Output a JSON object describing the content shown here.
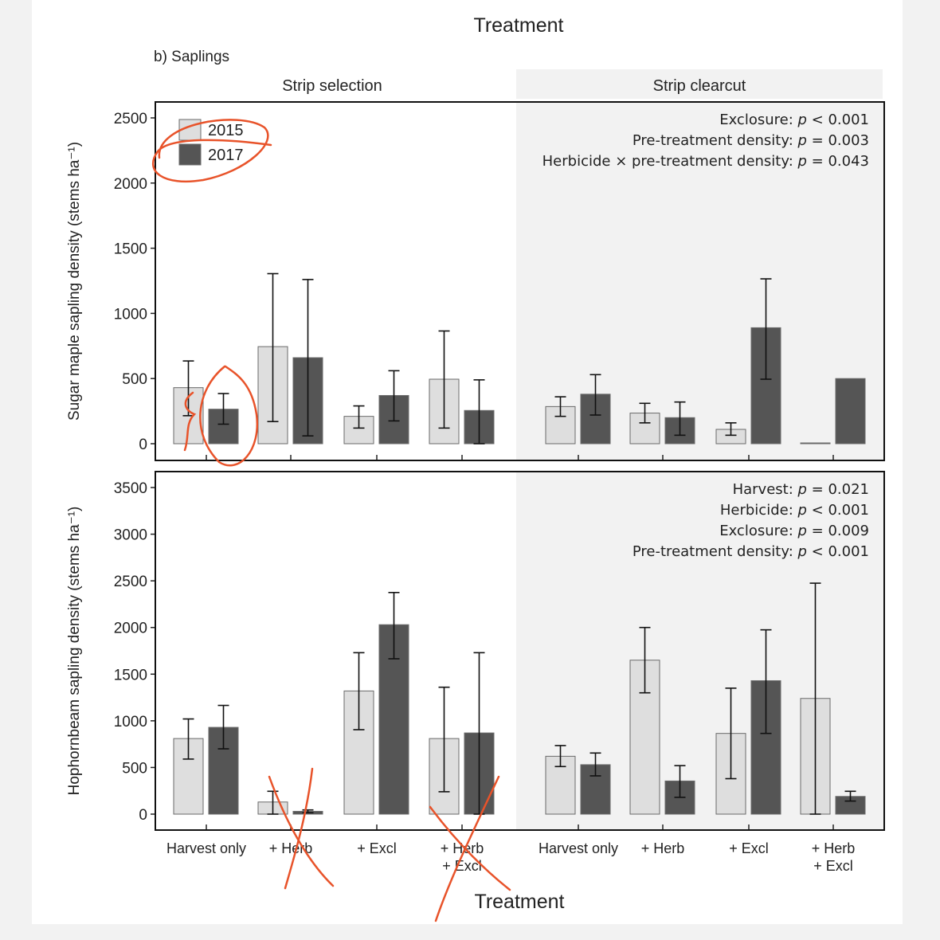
{
  "figure": {
    "top_title": "Treatment",
    "panel_label": "b) Saplings",
    "strips": [
      "Strip selection",
      "Strip clearcut"
    ],
    "xlabel": "Treatment"
  },
  "legend": {
    "items": [
      "2015",
      "2017"
    ],
    "placement": "top-left"
  },
  "colors": {
    "y2015": "#dedede",
    "y2017": "#555555",
    "right_shade": "#f2f2f2",
    "annotation": "#e8532a"
  },
  "chart_data": [
    {
      "type": "bar",
      "ylabel": "Sugar maple sapling density (stems ha⁻¹)",
      "ylim": [
        0,
        2500
      ],
      "yticks": [
        0,
        500,
        1000,
        1500,
        2000,
        2500
      ],
      "categories": [
        [
          "Harvest only"
        ],
        [
          "+ Herb"
        ],
        [
          "+ Excl"
        ],
        [
          "+ Herb",
          "+ Excl"
        ],
        [
          "Harvest only"
        ],
        [
          "+ Herb"
        ],
        [
          "+ Excl"
        ],
        [
          "+ Herb",
          "+ Excl"
        ]
      ],
      "series": [
        {
          "name": "2015",
          "values": [
            430,
            745,
            210,
            495,
            285,
            235,
            110,
            5
          ],
          "err_low": [
            215,
            170,
            120,
            120,
            210,
            160,
            65,
            5
          ],
          "err_high": [
            635,
            1305,
            290,
            865,
            360,
            310,
            160,
            5
          ]
        },
        {
          "name": "2017",
          "values": [
            265,
            660,
            370,
            255,
            380,
            200,
            890,
            500
          ],
          "err_low": [
            150,
            60,
            175,
            0,
            220,
            65,
            495,
            500
          ],
          "err_high": [
            385,
            1260,
            560,
            490,
            530,
            320,
            1265,
            500
          ]
        }
      ],
      "stats": [
        [
          "Exclosure: ",
          "p",
          " < 0.001"
        ],
        [
          "Pre-treatment density: ",
          "p",
          " = 0.003"
        ],
        [
          "Herbicide × pre-treatment density: ",
          "p",
          " = 0.043"
        ]
      ],
      "grid": false
    },
    {
      "type": "bar",
      "ylabel": "Hophornbeam sapling density (stems ha⁻¹)",
      "ylim": [
        0,
        3500
      ],
      "yticks": [
        0,
        500,
        1000,
        1500,
        2000,
        2500,
        3000,
        3500
      ],
      "categories": [
        [
          "Harvest only"
        ],
        [
          "+ Herb"
        ],
        [
          "+ Excl"
        ],
        [
          "+ Herb",
          "+ Excl"
        ],
        [
          "Harvest only"
        ],
        [
          "+ Herb"
        ],
        [
          "+ Excl"
        ],
        [
          "+ Herb",
          "+ Excl"
        ]
      ],
      "series": [
        {
          "name": "2015",
          "values": [
            810,
            130,
            1320,
            810,
            620,
            1650,
            865,
            1240
          ],
          "err_low": [
            590,
            0,
            905,
            240,
            510,
            1300,
            380,
            0
          ],
          "err_high": [
            1020,
            245,
            1730,
            1360,
            735,
            2000,
            1350,
            2475
          ]
        },
        {
          "name": "2017",
          "values": [
            930,
            30,
            2030,
            870,
            530,
            355,
            1430,
            190
          ],
          "err_low": [
            700,
            15,
            1665,
            0,
            410,
            180,
            865,
            140
          ],
          "err_high": [
            1165,
            45,
            2375,
            1730,
            655,
            520,
            1975,
            245
          ]
        }
      ],
      "stats": [
        [
          "Harvest: ",
          "p",
          " = 0.021"
        ],
        [
          "Herbicide: ",
          "p",
          " < 0.001"
        ],
        [
          "Exclosure: ",
          "p",
          " = 0.009"
        ],
        [
          "Pre-treatment density: ",
          "p",
          " < 0.001"
        ]
      ],
      "grid": false
    }
  ]
}
